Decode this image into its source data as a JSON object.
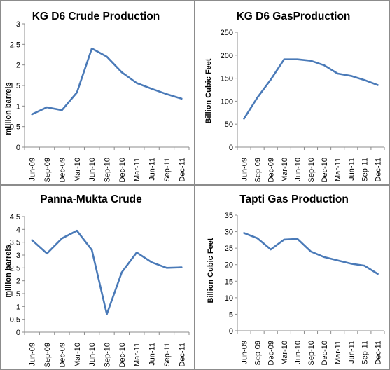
{
  "chart_data": [
    {
      "type": "line",
      "title": "KG D6 Crude Production",
      "ylabel": "million barrels",
      "xlabel": "",
      "ylim": [
        0,
        3
      ],
      "yticks": [
        "0",
        "0.5",
        "1",
        "1.5",
        "2",
        "2.5",
        "3"
      ],
      "categories": [
        "Jun-09",
        "Sep-09",
        "Dec-09",
        "Mar-10",
        "Jun-10",
        "Sep-10",
        "Dec-10",
        "Mar-11",
        "Jun-11",
        "Sep-11",
        "Dec-11"
      ],
      "series": [
        {
          "values": [
            0.8,
            0.97,
            0.9,
            1.33,
            2.4,
            2.2,
            1.82,
            1.56,
            1.42,
            1.29,
            1.18
          ]
        }
      ],
      "grid": false,
      "line_color": "#4a7ab8"
    },
    {
      "type": "line",
      "title": "KG D6 GasProduction",
      "ylabel": "Billion Cubic Feet",
      "xlabel": "",
      "ylim": [
        0,
        250
      ],
      "yticks": [
        "0",
        "50",
        "100",
        "150",
        "200",
        "250"
      ],
      "categories": [
        "Jun-09",
        "Sep-09",
        "Dec-09",
        "Mar-10",
        "Jun-10",
        "Sep-10",
        "Dec-10",
        "Mar-11",
        "Jun-11",
        "Sep-11",
        "Dec-11"
      ],
      "series": [
        {
          "values": [
            62,
            108,
            147,
            191,
            191,
            188,
            178,
            160,
            155,
            146,
            135
          ]
        }
      ],
      "grid": false,
      "line_color": "#4a7ab8"
    },
    {
      "type": "line",
      "title": "Panna-Mukta Crude",
      "ylabel": "million barrels",
      "xlabel": "",
      "ylim": [
        0,
        4.5
      ],
      "yticks": [
        "0",
        "0.5",
        "1",
        "1.5",
        "2",
        "2.5",
        "3",
        "3.5",
        "4",
        "4.5"
      ],
      "categories": [
        "Jun-09",
        "Sep-09",
        "Dec-09",
        "Mar-10",
        "Jun-10",
        "Sep-10",
        "Dec-10",
        "Mar-11",
        "Jun-11",
        "Sep-11",
        "Dec-11"
      ],
      "series": [
        {
          "values": [
            3.58,
            3.06,
            3.65,
            3.95,
            3.2,
            0.7,
            2.33,
            3.1,
            2.72,
            2.5,
            2.52
          ]
        }
      ],
      "grid": false,
      "line_color": "#4a7ab8"
    },
    {
      "type": "line",
      "title": "Tapti Gas Production",
      "ylabel": "Billion Cubic Feet",
      "xlabel": "",
      "ylim": [
        0,
        35
      ],
      "yticks": [
        "0",
        "5",
        "10",
        "15",
        "20",
        "25",
        "30",
        "35"
      ],
      "categories": [
        "Jun-09",
        "Sep-09",
        "Dec-09",
        "Mar-10",
        "Jun-10",
        "Sep-10",
        "Dec-10",
        "Mar-11",
        "Jun-11",
        "Sep-11",
        "Dec-11"
      ],
      "series": [
        {
          "values": [
            29.6,
            28.0,
            24.6,
            27.6,
            27.8,
            24.0,
            22.3,
            21.3,
            20.3,
            19.7,
            17.2
          ]
        }
      ],
      "grid": false,
      "line_color": "#4a7ab8"
    }
  ]
}
